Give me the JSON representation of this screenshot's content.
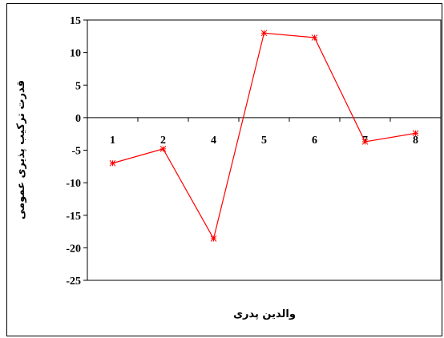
{
  "chart_data": {
    "type": "line",
    "title": "",
    "xlabel": "والدین پدری",
    "ylabel": "قدرت ترکیب پذیری عمومی",
    "categories": [
      "1",
      "2",
      "4",
      "5",
      "6",
      "7",
      "8"
    ],
    "series": [
      {
        "values": [
          -7,
          -4.8,
          -18.6,
          13,
          12.3,
          -3.7,
          -2.4
        ]
      }
    ],
    "ylim": [
      -25,
      15
    ],
    "yticks": [
      "15",
      "10",
      "5",
      "0",
      "-5",
      "-10",
      "-15",
      "-20",
      "-25"
    ],
    "grid": false,
    "legend": "none",
    "line_color": "#ff0000",
    "marker": "asterisk"
  }
}
